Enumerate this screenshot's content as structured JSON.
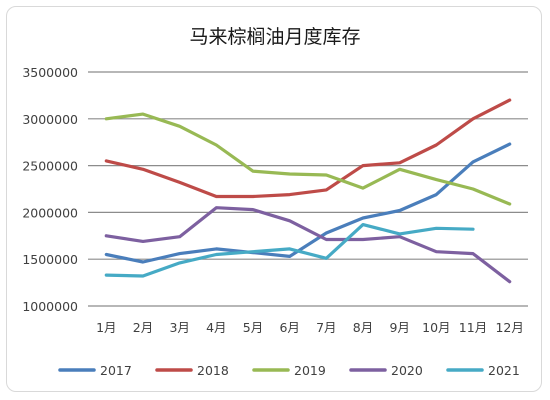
{
  "chart_data": {
    "type": "line",
    "title": "马来棕榈油月度库存",
    "xlabel": "",
    "ylabel": "",
    "categories": [
      "1月",
      "2月",
      "3月",
      "4月",
      "5月",
      "6月",
      "7月",
      "8月",
      "9月",
      "10月",
      "11月",
      "12月"
    ],
    "ylim": [
      1000000,
      3500000
    ],
    "yticks": [
      1000000,
      1500000,
      2000000,
      2500000,
      3000000,
      3500000
    ],
    "ytick_labels": [
      "1000000",
      "1500000",
      "2000000",
      "2500000",
      "3000000",
      "3500000"
    ],
    "grid": "horizontal",
    "legend_position": "bottom",
    "series": [
      {
        "name": "2017",
        "color": "#4a7ebb",
        "values": [
          1550000,
          1470000,
          1560000,
          1610000,
          1570000,
          1530000,
          1780000,
          1940000,
          2020000,
          2190000,
          2540000,
          2730000
        ]
      },
      {
        "name": "2018",
        "color": "#be4b48",
        "values": [
          2550000,
          2460000,
          2320000,
          2170000,
          2170000,
          2190000,
          2240000,
          2500000,
          2530000,
          2720000,
          3000000,
          3200000
        ]
      },
      {
        "name": "2019",
        "color": "#98b954",
        "values": [
          3000000,
          3050000,
          2920000,
          2720000,
          2440000,
          2410000,
          2400000,
          2260000,
          2460000,
          2350000,
          2250000,
          2090000
        ]
      },
      {
        "name": "2020",
        "color": "#7d60a0",
        "values": [
          1750000,
          1690000,
          1740000,
          2050000,
          2030000,
          1910000,
          1710000,
          1710000,
          1740000,
          1580000,
          1560000,
          1260000
        ]
      },
      {
        "name": "2021",
        "color": "#46aac5",
        "values": [
          1330000,
          1320000,
          1460000,
          1550000,
          1580000,
          1610000,
          1510000,
          1870000,
          1770000,
          1830000,
          1820000,
          null
        ]
      }
    ]
  }
}
